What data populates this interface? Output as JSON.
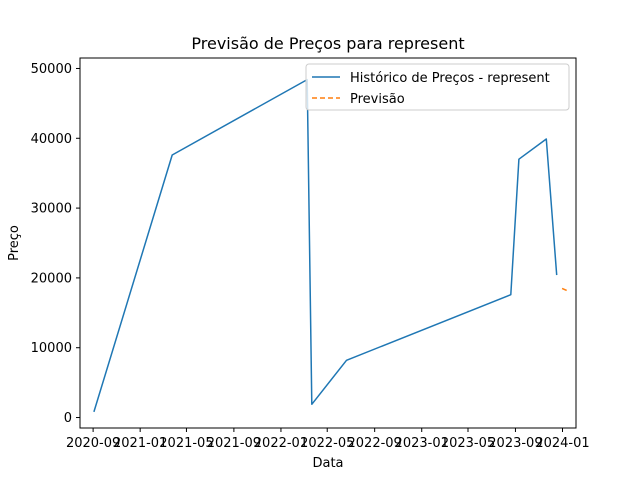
{
  "chart_data": {
    "type": "line",
    "title": "Previsão de Preços para represent",
    "xlabel": "Data",
    "ylabel": "Preço",
    "x_ticks": [
      "2020-09",
      "2021-01",
      "2021-05",
      "2021-09",
      "2022-01",
      "2022-05",
      "2022-09",
      "2023-01",
      "2023-05",
      "2023-09",
      "2024-01"
    ],
    "y_ticks": [
      "0",
      "10000",
      "20000",
      "30000",
      "40000",
      "50000"
    ],
    "ylim": [
      -1500,
      51500
    ],
    "grid": false,
    "legend_position": "top-right",
    "series": [
      {
        "name": "Histórico de Preços - represent",
        "style": "solid",
        "color": "#1f77b4",
        "points": [
          {
            "x": "2020-09-03",
            "y": 800
          },
          {
            "x": "2021-03-25",
            "y": 37600
          },
          {
            "x": "2022-03-10",
            "y": 48400
          },
          {
            "x": "2022-03-22",
            "y": 1900
          },
          {
            "x": "2022-06-20",
            "y": 8200
          },
          {
            "x": "2023-08-20",
            "y": 17600
          },
          {
            "x": "2023-09-10",
            "y": 37000
          },
          {
            "x": "2023-11-20",
            "y": 39900
          },
          {
            "x": "2023-12-17",
            "y": 20400
          }
        ]
      },
      {
        "name": "Previsão",
        "style": "dashed",
        "color": "#ff7f0e",
        "points": [
          {
            "x": "2023-12-31",
            "y": 18500
          },
          {
            "x": "2024-01-12",
            "y": 18200
          }
        ]
      }
    ]
  }
}
